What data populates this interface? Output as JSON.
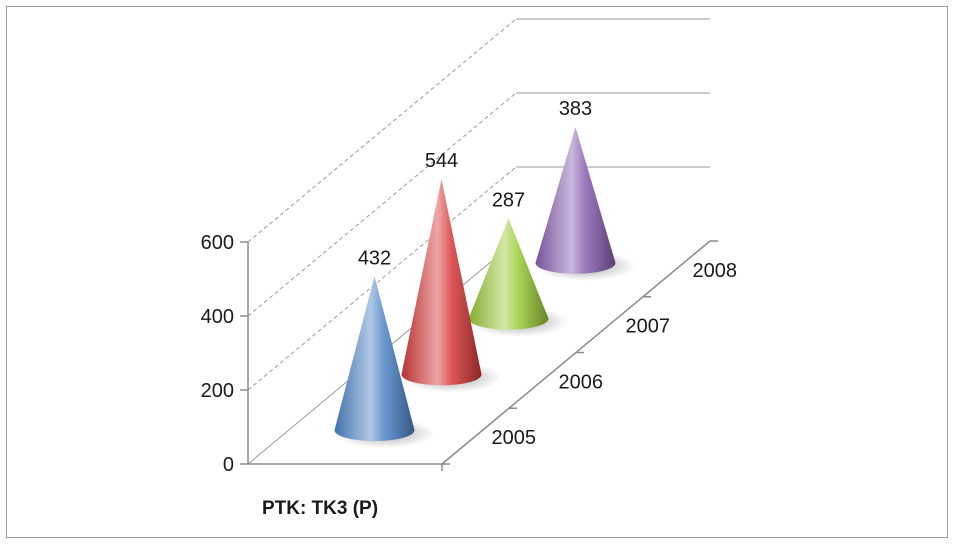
{
  "chart_data": {
    "type": "bar",
    "shape": "cone-3d",
    "categories": [
      "2005",
      "2006",
      "2007",
      "2008"
    ],
    "series": [
      {
        "name": "PTK: TK3 (P)",
        "values": [
          432,
          544,
          287,
          383
        ],
        "colors": [
          "#4f86c9",
          "#d93a3a",
          "#9ccc3a",
          "#8a62b4"
        ]
      }
    ],
    "data_labels": [
      "432",
      "544",
      "287",
      "383"
    ],
    "y_ticks": [
      "0",
      "200",
      "400",
      "600"
    ],
    "ylim": [
      0,
      600
    ],
    "gridlines": true,
    "legend": "none",
    "title": "",
    "xlabel": "",
    "ylabel": ""
  }
}
